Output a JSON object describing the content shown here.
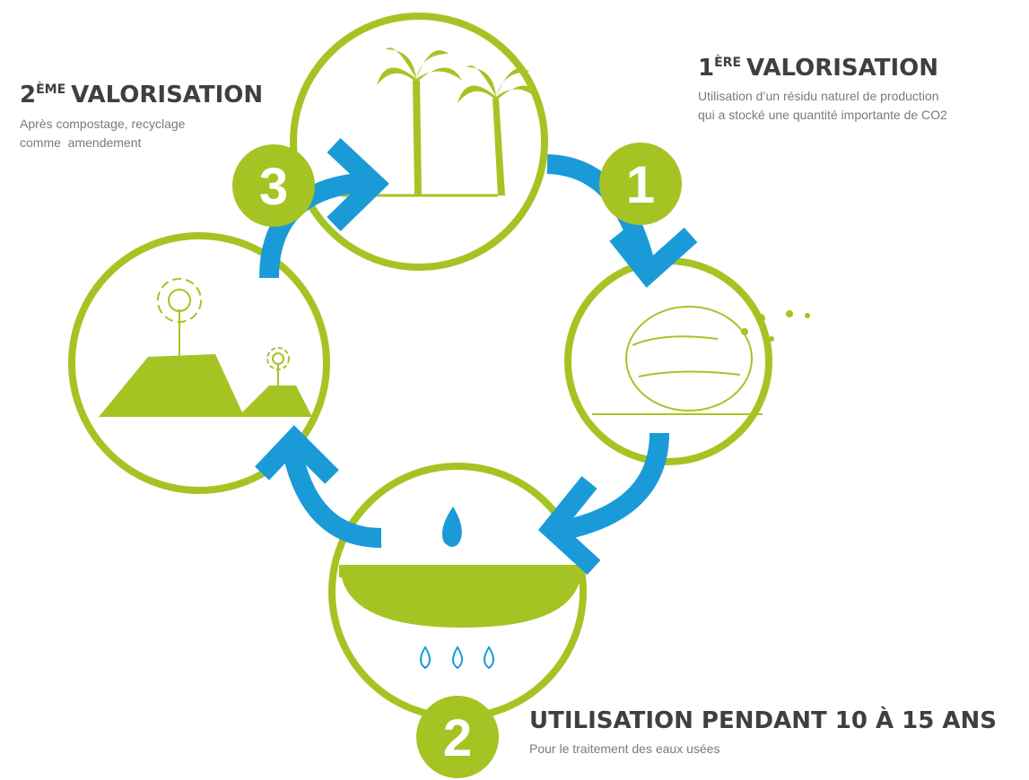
{
  "steps": [
    {
      "badge": "1",
      "title_number": "1",
      "title_sup": "ÈRE",
      "title": "VALORISATION",
      "description": [
        "Utilisation d’un résidu naturel de production",
        "qui a stocké une quantité importante de CO2"
      ]
    },
    {
      "badge": "2",
      "title": "UTILISATION PENDANT 10 À 15 ANS",
      "description": [
        "Pour le traitement des eaux usées"
      ]
    },
    {
      "badge": "3",
      "title_number": "2",
      "title_sup": "ÈME",
      "title": "VALORISATION",
      "description": [
        "Après compostage, recyclage",
        "comme  amendement"
      ]
    }
  ]
}
